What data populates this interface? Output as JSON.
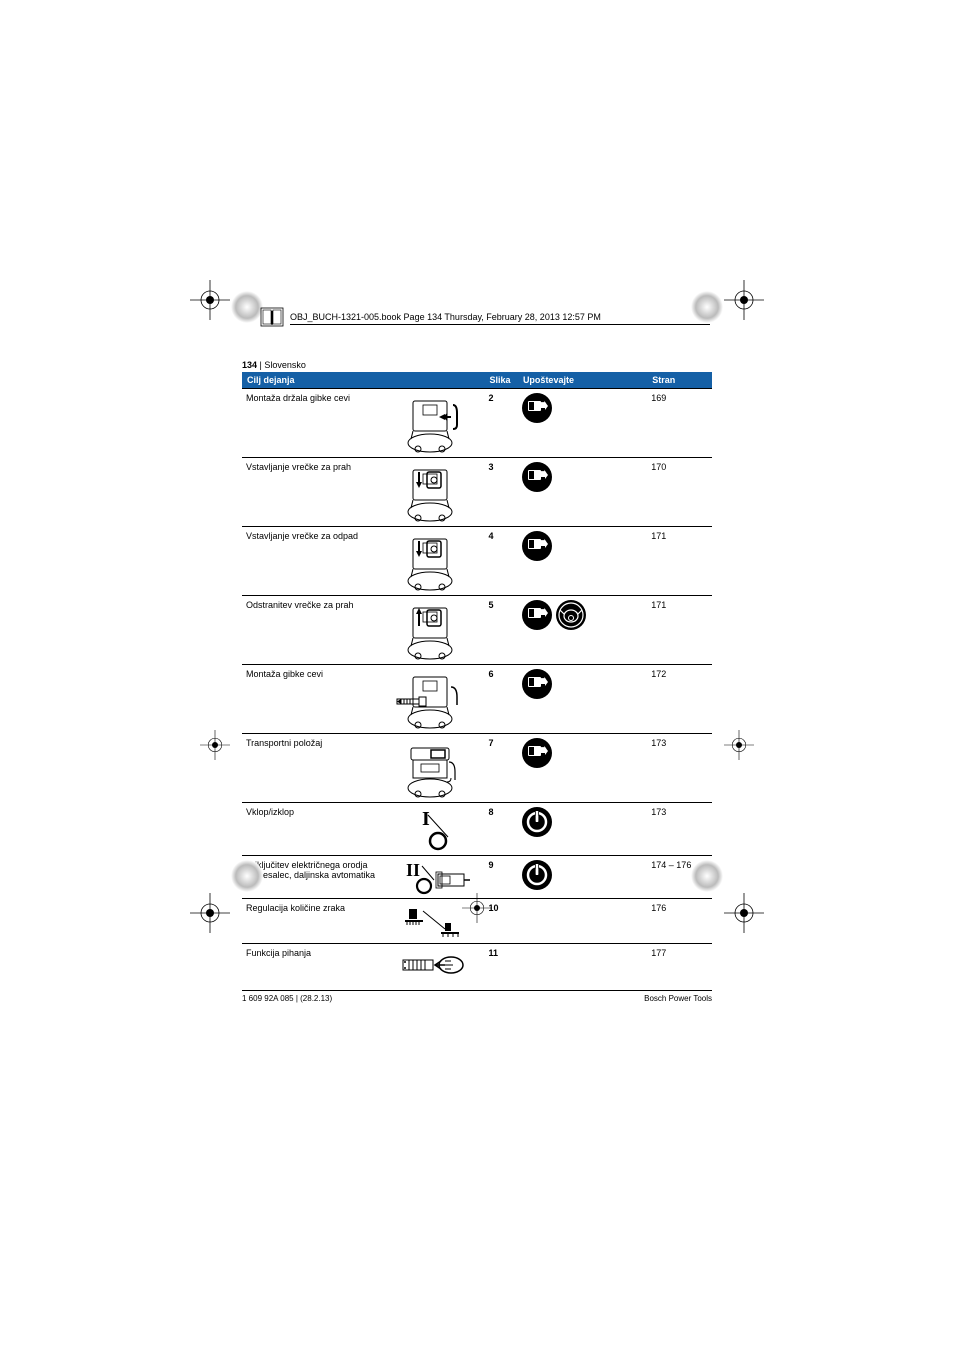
{
  "meta": {
    "header_line": "OBJ_BUCH-1321-005.book  Page 134  Thursday, February 28, 2013  12:57 PM",
    "page_number": "134",
    "language": "Slovensko",
    "footer_left": "1 609 92A 085 | (28.2.13)",
    "footer_right": "Bosch Power Tools"
  },
  "table": {
    "headers": {
      "action": "Cilj dejanja",
      "slika": "Slika",
      "upo": "Upoštevajte",
      "stran": "Stran"
    },
    "rows": [
      {
        "action": "Montaža držala gibke cevi",
        "slika": "2",
        "stran": "169",
        "icons": [
          "manual"
        ],
        "diagram": "vac-handle"
      },
      {
        "action": "Vstavljanje vrečke za prah",
        "slika": "3",
        "stran": "170",
        "icons": [
          "manual"
        ],
        "diagram": "vac-bag-in"
      },
      {
        "action": "Vstavljanje vrečke za odpad",
        "slika": "4",
        "stran": "171",
        "icons": [
          "manual"
        ],
        "diagram": "vac-waste-in"
      },
      {
        "action": "Odstranitev vrečke za prah",
        "slika": "5",
        "stran": "171",
        "icons": [
          "manual",
          "mask"
        ],
        "diagram": "vac-bag-out"
      },
      {
        "action": "Montaža gibke cevi",
        "slika": "6",
        "stran": "172",
        "icons": [
          "manual"
        ],
        "diagram": "vac-hose"
      },
      {
        "action": "Transportni položaj",
        "slika": "7",
        "stran": "173",
        "icons": [
          "manual"
        ],
        "diagram": "vac-transport"
      },
      {
        "action": "Vklop/izklop",
        "slika": "8",
        "stran": "173",
        "icons": [
          "power"
        ],
        "diagram": "dial-I",
        "short": true
      },
      {
        "action": "Priključitev električnega orodja na sesalec, daljinska avtomatika",
        "slika": "9",
        "stran": "174 – 176",
        "icons": [
          "power"
        ],
        "diagram": "dial-II",
        "short": true
      },
      {
        "action": "Regulacija količine zraka",
        "slika": "10",
        "stran": "176",
        "icons": [],
        "diagram": "airflow",
        "short": true
      },
      {
        "action": "Funkcija pihanja",
        "slika": "11",
        "stran": "177",
        "icons": [],
        "diagram": "blow",
        "short": true
      }
    ]
  },
  "colors": {
    "header_bg": "#1560a6",
    "header_fg": "#ffffff",
    "icon_bg": "#000000",
    "rule": "#000000"
  }
}
